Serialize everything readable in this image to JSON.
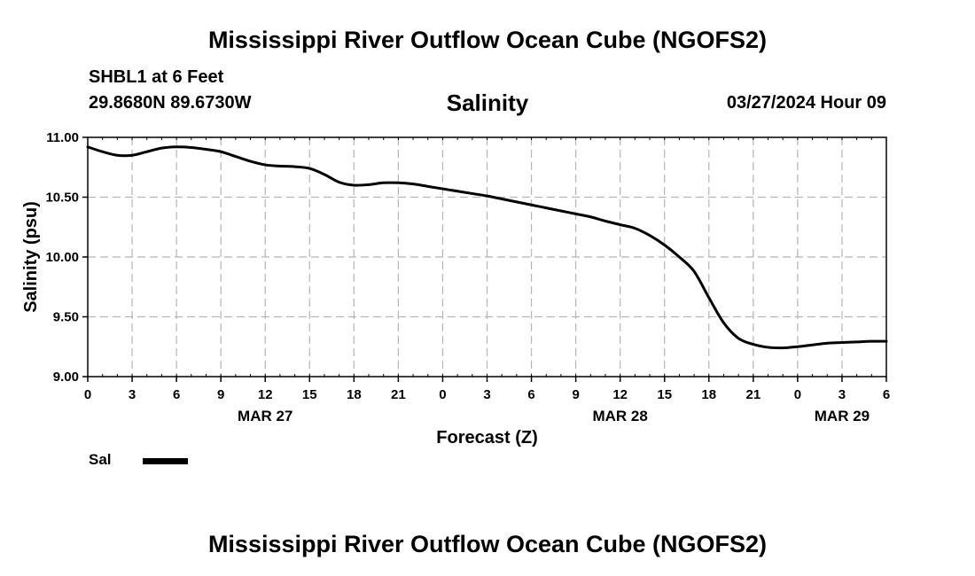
{
  "header": {
    "title": "Mississippi River Outflow Ocean Cube (NGOFS2)",
    "station": "SHBL1 at 6 Feet",
    "coords": "29.8680N  89.6730W",
    "run_time": "03/27/2024 Hour 09"
  },
  "footer": {
    "title": "Mississippi River Outflow Ocean Cube (NGOFS2)"
  },
  "legend": {
    "label": "Sal",
    "color": "#000000"
  },
  "chart_data": {
    "type": "line",
    "title": "Salinity",
    "xlabel": "Forecast (Z)",
    "ylabel": "Salinity (psu)",
    "xlim": [
      0,
      54
    ],
    "ylim": [
      9.0,
      11.0
    ],
    "grid": true,
    "x_unit": "hours since MAR 27 00Z",
    "x_ticks": [
      0,
      3,
      6,
      9,
      12,
      15,
      18,
      21,
      24,
      27,
      30,
      33,
      36,
      39,
      42,
      45,
      48,
      51,
      54
    ],
    "x_tick_labels": [
      "0",
      "3",
      "6",
      "9",
      "12",
      "15",
      "18",
      "21",
      "0",
      "3",
      "6",
      "9",
      "12",
      "15",
      "18",
      "21",
      "0",
      "3",
      "6"
    ],
    "y_ticks": [
      9.0,
      9.5,
      10.0,
      10.5,
      11.0
    ],
    "y_tick_labels": [
      "9.00",
      "9.50",
      "10.00",
      "10.50",
      "11.00"
    ],
    "day_labels": [
      {
        "x": 12,
        "label": "MAR 27"
      },
      {
        "x": 36,
        "label": "MAR 28"
      },
      {
        "x": 51,
        "label": "MAR 29"
      }
    ],
    "series": [
      {
        "name": "Sal",
        "x": [
          0,
          1,
          2,
          3,
          4,
          5,
          6,
          7,
          8,
          9,
          10,
          11,
          12,
          13,
          14,
          15,
          16,
          17,
          18,
          19,
          20,
          21,
          22,
          23,
          24,
          25,
          26,
          27,
          28,
          29,
          30,
          31,
          32,
          33,
          34,
          35,
          36,
          37,
          38,
          39,
          40,
          41,
          42,
          43,
          44,
          45,
          46,
          47,
          48,
          49,
          50,
          51,
          52,
          53,
          54
        ],
        "values": [
          10.92,
          10.88,
          10.85,
          10.85,
          10.88,
          10.91,
          10.92,
          10.915,
          10.9,
          10.88,
          10.84,
          10.8,
          10.77,
          10.76,
          10.755,
          10.74,
          10.69,
          10.625,
          10.6,
          10.605,
          10.62,
          10.62,
          10.61,
          10.59,
          10.57,
          10.55,
          10.53,
          10.51,
          10.485,
          10.46,
          10.435,
          10.41,
          10.385,
          10.36,
          10.335,
          10.3,
          10.27,
          10.24,
          10.18,
          10.1,
          10.0,
          9.88,
          9.66,
          9.45,
          9.32,
          9.27,
          9.245,
          9.24,
          9.25,
          9.265,
          9.28,
          9.285,
          9.29,
          9.295,
          9.295
        ]
      }
    ]
  }
}
